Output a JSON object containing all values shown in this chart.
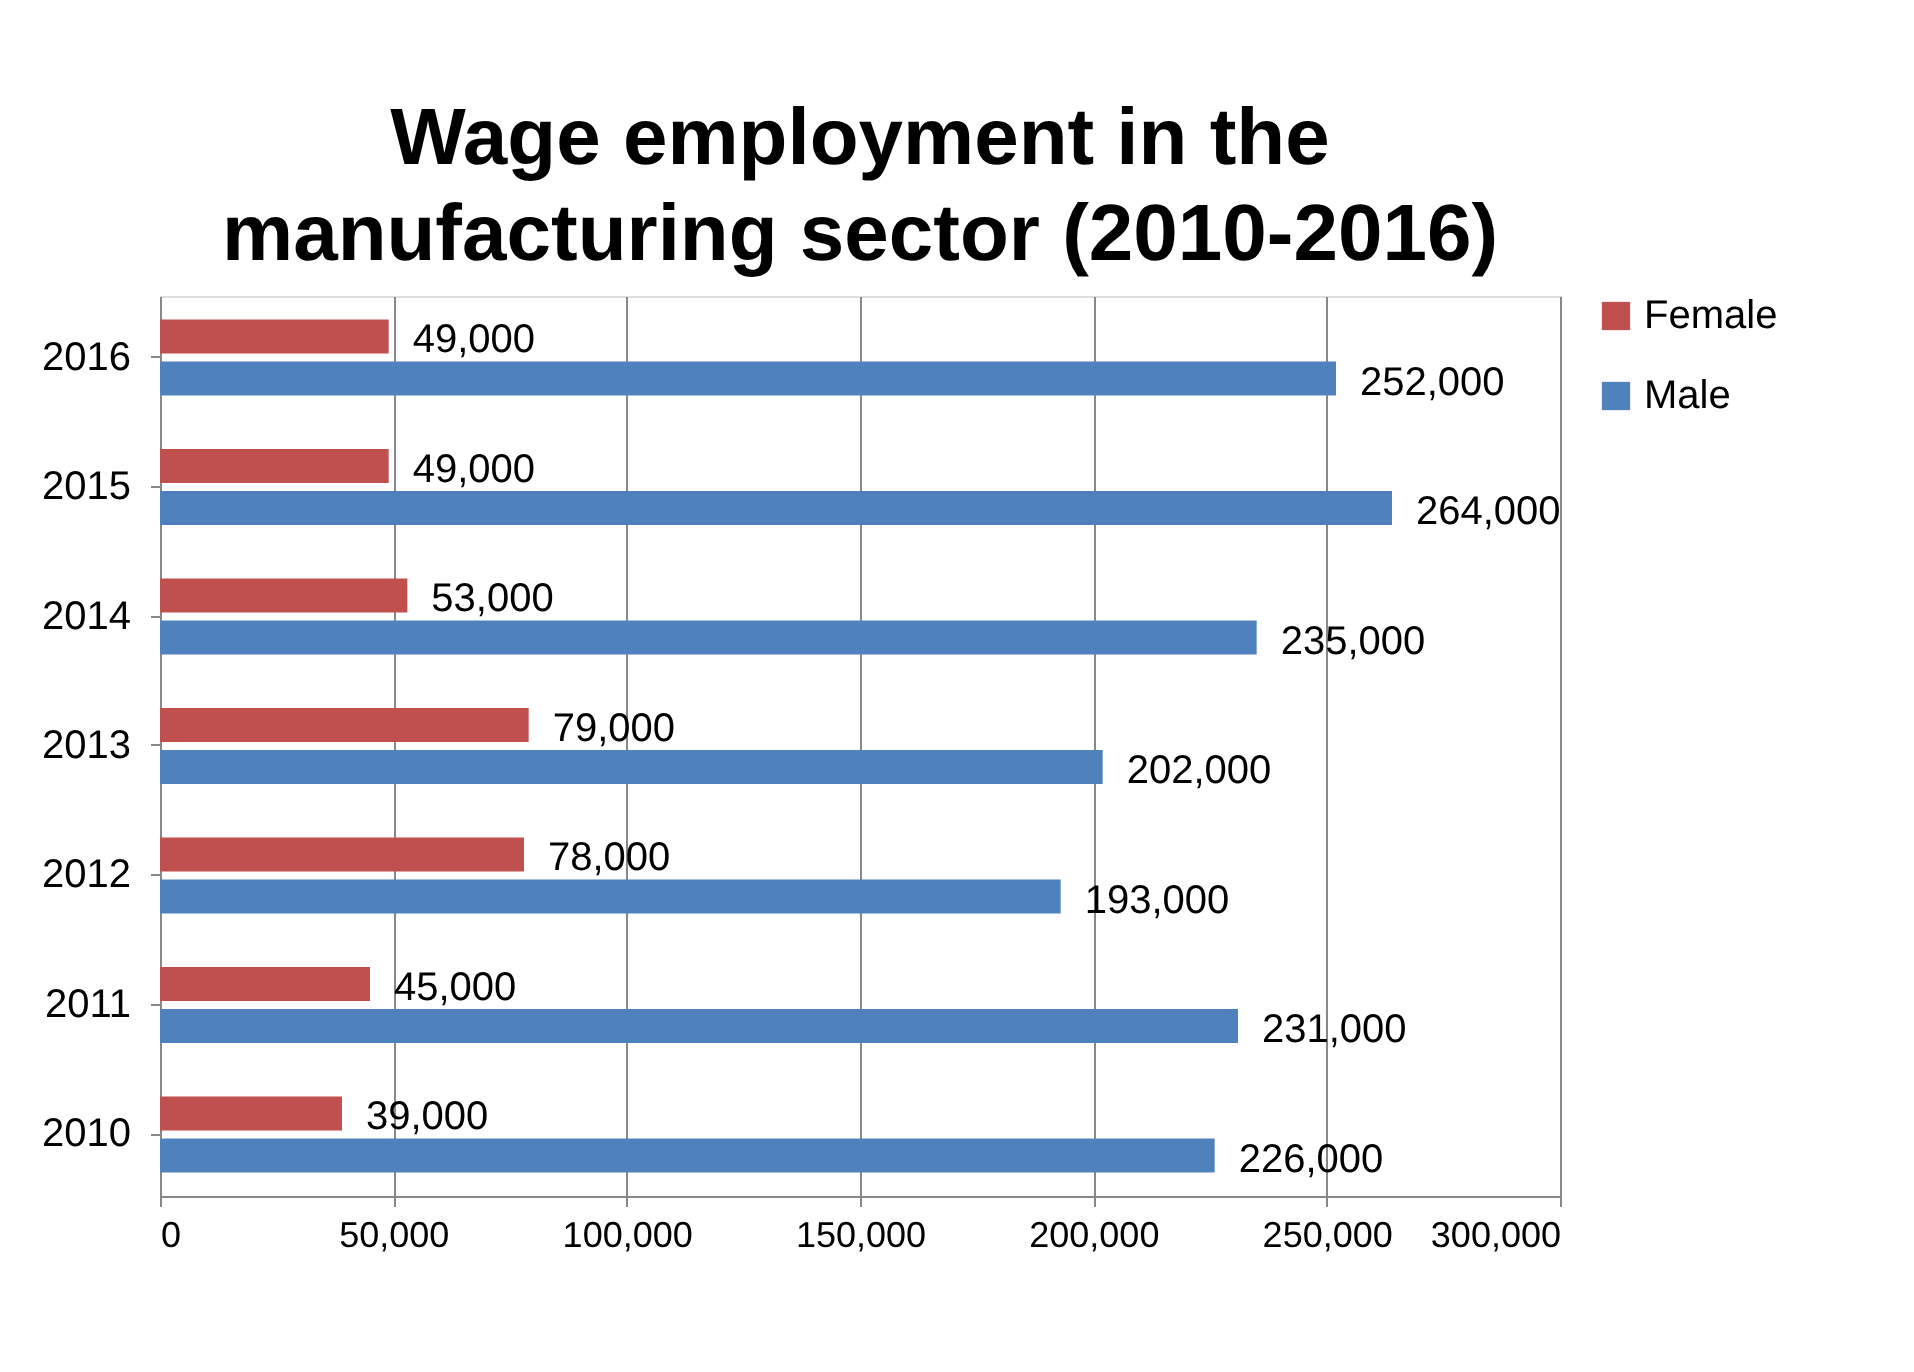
{
  "chart_data": {
    "type": "bar",
    "orientation": "horizontal",
    "title": "Wage employment in the manufacturing sector (2010-2016)",
    "categories": [
      "2016",
      "2015",
      "2014",
      "2013",
      "2012",
      "2011",
      "2010"
    ],
    "series": [
      {
        "name": "Female",
        "color": "#c0504d",
        "values": [
          49000,
          49000,
          53000,
          79000,
          78000,
          45000,
          39000
        ],
        "value_labels": [
          "49,000",
          "49,000",
          "53,000",
          "79,000",
          "78,000",
          "45,000",
          "39,000"
        ]
      },
      {
        "name": "Male",
        "color": "#4f81bd",
        "values": [
          252000,
          264000,
          235000,
          202000,
          193000,
          231000,
          226000
        ],
        "value_labels": [
          "252,000",
          "264,000",
          "235,000",
          "202,000",
          "193,000",
          "231,000",
          "226,000"
        ]
      }
    ],
    "xlim": [
      0,
      300000
    ],
    "xticks": [
      0,
      {
        "value": 50000,
        "label": "50,000"
      },
      {
        "value": 100000,
        "label": "100,000"
      },
      {
        "value": 150000,
        "label": "150,000"
      },
      {
        "value": 200000,
        "label": "200,000"
      },
      {
        "value": 250000,
        "label": "250,000"
      },
      {
        "value": 300000,
        "label": "300,000"
      }
    ],
    "grid": "x",
    "legend": "right"
  }
}
